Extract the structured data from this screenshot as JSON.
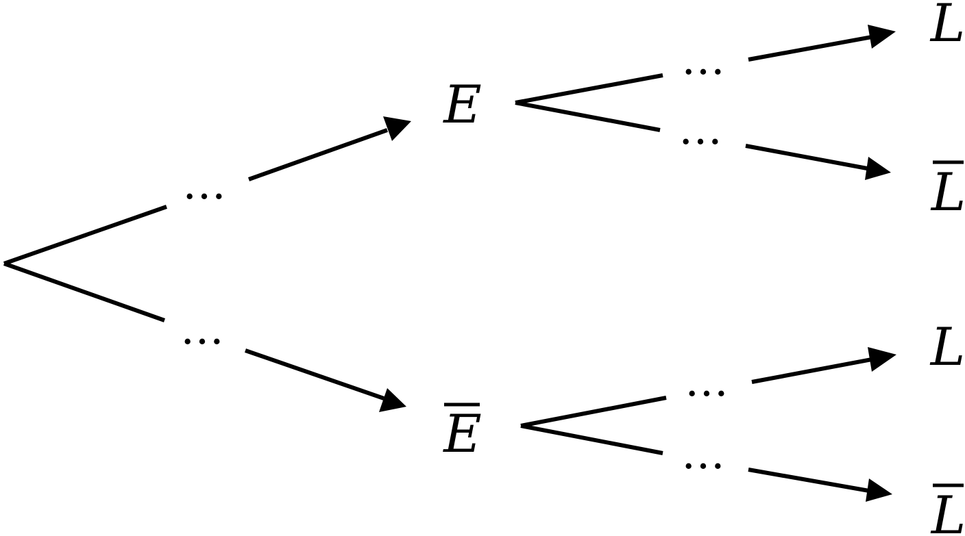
{
  "diagram": {
    "nodes": {
      "e": "E",
      "e_bar": "E",
      "l_1": "L",
      "l_bar_1": "L",
      "l_2": "L",
      "l_bar_2": "L"
    },
    "branch_probability": "…"
  }
}
